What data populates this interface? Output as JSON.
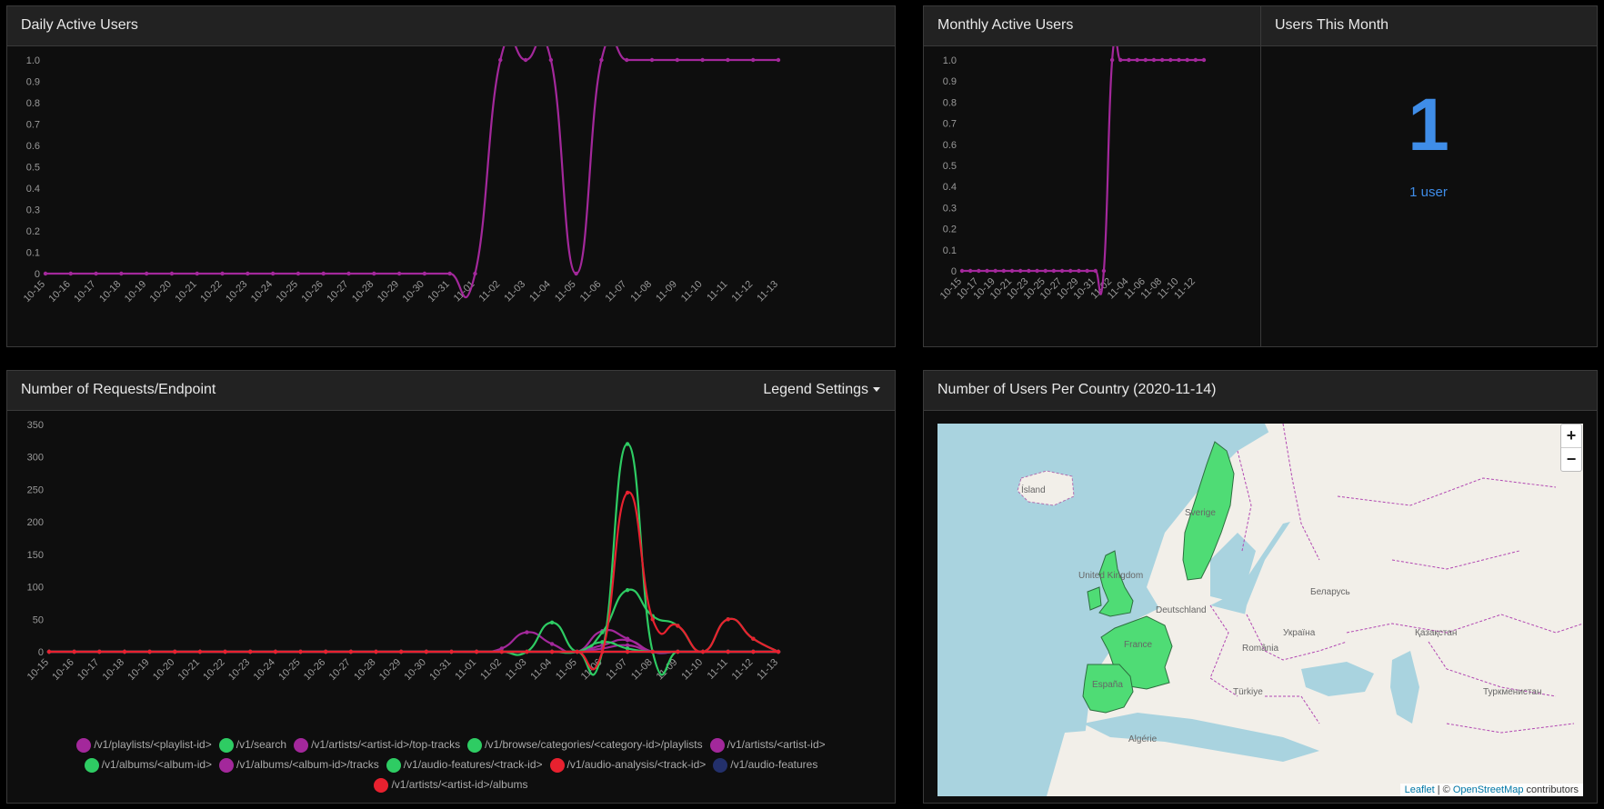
{
  "panels": {
    "dau_title": "Daily Active Users",
    "mau_title": "Monthly Active Users",
    "users_month_title": "Users This Month",
    "requests_title": "Number of Requests/Endpoint",
    "map_title": "Number of Users Per Country (2020-11-14)"
  },
  "users_this_month": {
    "value": "1",
    "caption": "1 user"
  },
  "legend_settings_label": "Legend Settings",
  "map": {
    "zoom_in": "+",
    "zoom_out": "−",
    "attribution_leaflet": "Leaflet",
    "attribution_sep": " | © ",
    "attribution_osm": "OpenStreetMap",
    "attribution_tail": " contributors",
    "labels": [
      "Ísland",
      "United Kingdom",
      "Sverige",
      "France",
      "España",
      "Deutschland",
      "Україна",
      "Беларусь",
      "România",
      "Türkiye",
      "Қазақстан",
      "Туркменистан",
      "Algérie"
    ],
    "highlight_color": "#4fdc75",
    "highlighted_countries": [
      "United Kingdom",
      "Sverige",
      "France",
      "España"
    ]
  },
  "chart_data": [
    {
      "type": "line",
      "name": "dau",
      "x": [
        "10-15",
        "10-16",
        "10-17",
        "10-18",
        "10-19",
        "10-20",
        "10-21",
        "10-22",
        "10-23",
        "10-24",
        "10-25",
        "10-26",
        "10-27",
        "10-28",
        "10-29",
        "10-30",
        "10-31",
        "11-01",
        "11-02",
        "11-03",
        "11-04",
        "11-05",
        "11-06",
        "11-07",
        "11-08",
        "11-09",
        "11-10",
        "11-11",
        "11-12",
        "11-13"
      ],
      "series": [
        {
          "color": "#a3289b",
          "values": [
            0,
            0,
            0,
            0,
            0,
            0,
            0,
            0,
            0,
            0,
            0,
            0,
            0,
            0,
            0,
            0,
            0,
            0,
            1,
            1,
            1,
            0,
            1,
            1,
            1,
            1,
            1,
            1,
            1,
            1
          ]
        }
      ],
      "yticks": [
        "0",
        "0.1",
        "0.2",
        "0.3",
        "0.4",
        "0.5",
        "0.6",
        "0.7",
        "0.8",
        "0.9",
        "1.0"
      ],
      "ylim": [
        0,
        1
      ]
    },
    {
      "type": "line",
      "name": "mau",
      "x": [
        "10-15",
        "10-16",
        "10-17",
        "10-18",
        "10-19",
        "10-20",
        "10-21",
        "10-22",
        "10-23",
        "10-24",
        "10-25",
        "10-26",
        "10-27",
        "10-28",
        "10-29",
        "10-30",
        "10-31",
        "11-01",
        "11-02",
        "11-03",
        "11-04",
        "11-05",
        "11-06",
        "11-07",
        "11-08",
        "11-09",
        "11-10",
        "11-11",
        "11-12",
        "11-13"
      ],
      "xticks_shown": [
        "10-15",
        "10-17",
        "10-19",
        "10-21",
        "10-23",
        "10-25",
        "10-27",
        "10-29",
        "10-31",
        "11-02",
        "11-04",
        "11-06",
        "11-08",
        "11-10",
        "11-12"
      ],
      "series": [
        {
          "color": "#a3289b",
          "values": [
            0,
            0,
            0,
            0,
            0,
            0,
            0,
            0,
            0,
            0,
            0,
            0,
            0,
            0,
            0,
            0,
            0,
            0,
            1,
            1,
            1,
            1,
            1,
            1,
            1,
            1,
            1,
            1,
            1,
            1
          ]
        }
      ],
      "yticks": [
        "0",
        "0.1",
        "0.2",
        "0.3",
        "0.4",
        "0.5",
        "0.6",
        "0.7",
        "0.8",
        "0.9",
        "1.0"
      ],
      "ylim": [
        0,
        1
      ]
    },
    {
      "type": "line",
      "name": "requests",
      "x": [
        "10-15",
        "10-16",
        "10-17",
        "10-18",
        "10-19",
        "10-20",
        "10-21",
        "10-22",
        "10-23",
        "10-24",
        "10-25",
        "10-26",
        "10-27",
        "10-28",
        "10-29",
        "10-30",
        "10-31",
        "11-01",
        "11-02",
        "11-03",
        "11-04",
        "11-05",
        "11-06",
        "11-07",
        "11-08",
        "11-09",
        "11-10",
        "11-11",
        "11-12",
        "11-13"
      ],
      "yticks": [
        "0",
        "50",
        "100",
        "150",
        "200",
        "250",
        "300",
        "350"
      ],
      "ylim": [
        0,
        350
      ],
      "series": [
        {
          "name": "/v1/playlists/<playlist-id>",
          "color": "#a3289b",
          "values": [
            0,
            0,
            0,
            0,
            0,
            0,
            0,
            0,
            0,
            0,
            0,
            0,
            0,
            0,
            0,
            0,
            0,
            0,
            5,
            30,
            12,
            0,
            32,
            20,
            0,
            0,
            0,
            0,
            0,
            0
          ]
        },
        {
          "name": "/v1/search",
          "color": "#2ecc63",
          "values": [
            0,
            0,
            0,
            0,
            0,
            0,
            0,
            0,
            0,
            0,
            0,
            0,
            0,
            0,
            0,
            0,
            0,
            0,
            0,
            0,
            45,
            0,
            30,
            95,
            55,
            40,
            0,
            50,
            20,
            0
          ]
        },
        {
          "name": "/v1/artists/<artist-id>/top-tracks",
          "color": "#a3289b",
          "values": [
            0,
            0,
            0,
            0,
            0,
            0,
            0,
            0,
            0,
            0,
            0,
            0,
            0,
            0,
            0,
            0,
            0,
            0,
            0,
            0,
            0,
            0,
            10,
            18,
            0,
            0,
            0,
            0,
            0,
            0
          ]
        },
        {
          "name": "/v1/browse/categories/<category-id>/playlists",
          "color": "#2ecc63",
          "values": [
            0,
            0,
            0,
            0,
            0,
            0,
            0,
            0,
            0,
            0,
            0,
            0,
            0,
            0,
            0,
            0,
            0,
            0,
            0,
            0,
            0,
            0,
            0,
            320,
            0,
            0,
            0,
            0,
            0,
            0
          ]
        },
        {
          "name": "/v1/artists/<artist-id>",
          "color": "#a3289b",
          "values": [
            0,
            0,
            0,
            0,
            0,
            0,
            0,
            0,
            0,
            0,
            0,
            0,
            0,
            0,
            0,
            0,
            0,
            0,
            0,
            0,
            0,
            0,
            5,
            10,
            0,
            0,
            0,
            0,
            0,
            0
          ]
        },
        {
          "name": "/v1/albums/<album-id>",
          "color": "#2ecc63",
          "values": [
            0,
            0,
            0,
            0,
            0,
            0,
            0,
            0,
            0,
            0,
            0,
            0,
            0,
            0,
            0,
            0,
            0,
            0,
            0,
            0,
            0,
            0,
            15,
            5,
            0,
            0,
            0,
            0,
            0,
            0
          ]
        },
        {
          "name": "/v1/albums/<album-id>/tracks",
          "color": "#a3289b",
          "values": [
            0,
            0,
            0,
            0,
            0,
            0,
            0,
            0,
            0,
            0,
            0,
            0,
            0,
            0,
            0,
            0,
            0,
            0,
            0,
            0,
            0,
            0,
            0,
            0,
            0,
            0,
            0,
            0,
            0,
            0
          ]
        },
        {
          "name": "/v1/audio-features/<track-id>",
          "color": "#2ecc63",
          "values": [
            0,
            0,
            0,
            0,
            0,
            0,
            0,
            0,
            0,
            0,
            0,
            0,
            0,
            0,
            0,
            0,
            0,
            0,
            0,
            0,
            0,
            0,
            0,
            0,
            0,
            0,
            0,
            0,
            0,
            0
          ]
        },
        {
          "name": "/v1/audio-analysis/<track-id>",
          "color": "#e8212f",
          "values": [
            0,
            0,
            0,
            0,
            0,
            0,
            0,
            0,
            0,
            0,
            0,
            0,
            0,
            0,
            0,
            0,
            0,
            0,
            0,
            0,
            0,
            0,
            0,
            245,
            50,
            40,
            0,
            50,
            20,
            0
          ]
        },
        {
          "name": "/v1/audio-features",
          "color": "#23306b",
          "values": [
            0,
            0,
            0,
            0,
            0,
            0,
            0,
            0,
            0,
            0,
            0,
            0,
            0,
            0,
            0,
            0,
            0,
            0,
            0,
            0,
            0,
            0,
            0,
            0,
            0,
            0,
            0,
            0,
            0,
            0
          ]
        },
        {
          "name": "/v1/artists/<artist-id>/albums",
          "color": "#e8212f",
          "values": [
            0,
            0,
            0,
            0,
            0,
            0,
            0,
            0,
            0,
            0,
            0,
            0,
            0,
            0,
            0,
            0,
            0,
            0,
            0,
            0,
            0,
            0,
            0,
            0,
            0,
            0,
            0,
            0,
            0,
            0
          ]
        }
      ]
    }
  ]
}
